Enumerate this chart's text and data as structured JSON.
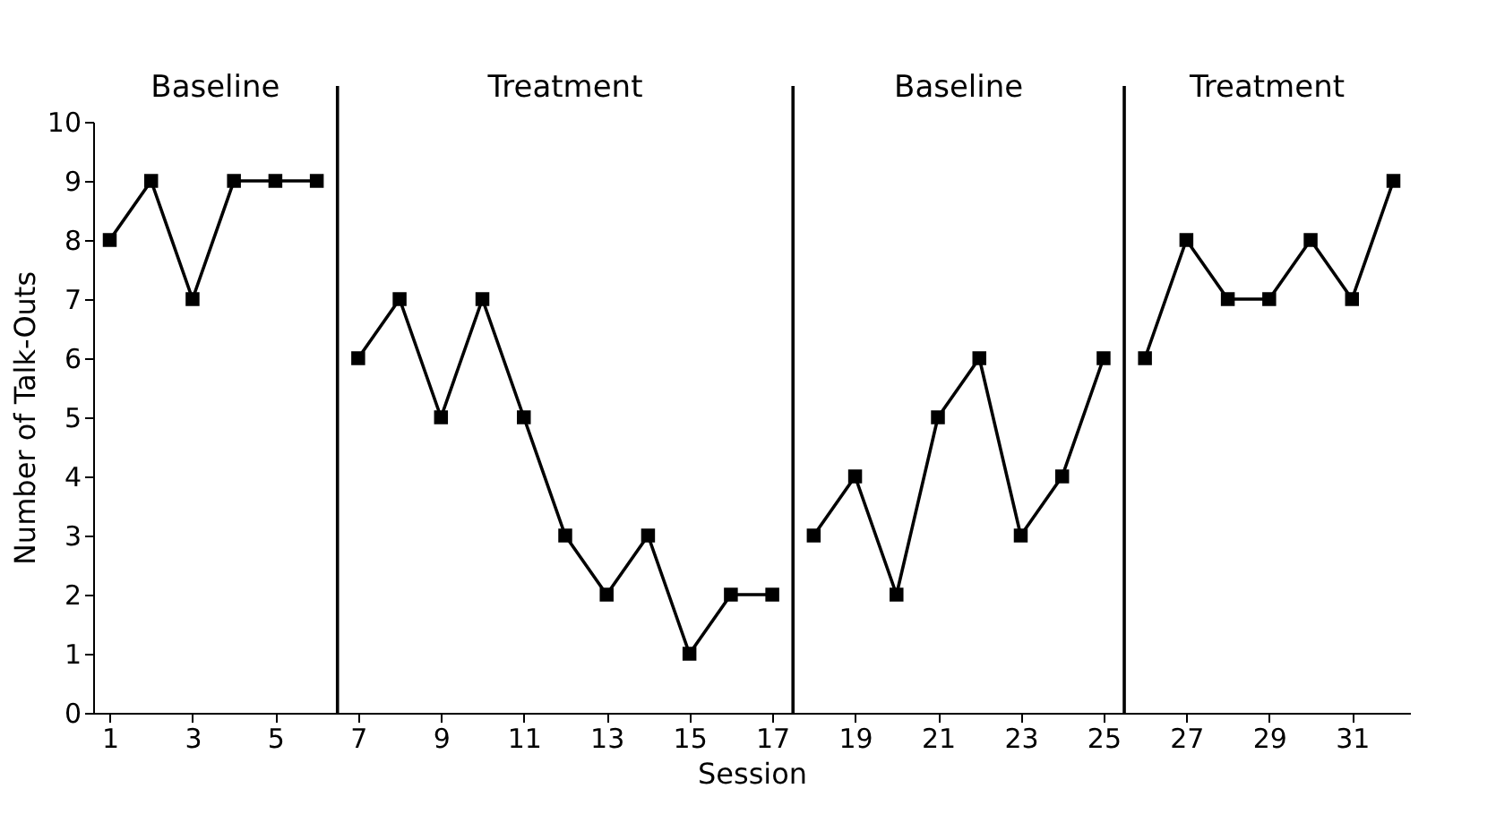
{
  "chart_data": {
    "type": "line",
    "xlabel": "Session",
    "ylabel": "Number of Talk-Outs",
    "series": [
      {
        "color": "#000000",
        "x": [
          1,
          2,
          3,
          4,
          5,
          6
        ],
        "values": [
          8,
          9,
          7,
          9,
          9,
          9
        ]
      },
      {
        "color": "#000000",
        "x": [
          7,
          8,
          9,
          10,
          11,
          12,
          13,
          14,
          15,
          16,
          17
        ],
        "values": [
          6,
          7,
          5,
          7,
          5,
          3,
          2,
          3,
          1,
          2,
          2
        ]
      },
      {
        "color": "#000000",
        "x": [
          18,
          19,
          20,
          21,
          22,
          23,
          24,
          25
        ],
        "values": [
          3,
          4,
          2,
          5,
          6,
          3,
          4,
          6
        ]
      },
      {
        "color": "#000000",
        "x": [
          26,
          27,
          28,
          29,
          30,
          31,
          32
        ],
        "values": [
          6,
          8,
          7,
          7,
          8,
          7,
          9
        ]
      }
    ],
    "xlim": [
      0.6,
      32.4
    ],
    "xticks": [
      1,
      3,
      5,
      7,
      9,
      11,
      13,
      15,
      17,
      19,
      21,
      23,
      25,
      27,
      29,
      31
    ],
    "ylim": [
      0,
      10
    ],
    "yticks": [
      0,
      1,
      2,
      3,
      4,
      5,
      6,
      7,
      8,
      9,
      10
    ],
    "ref_lines": [
      {
        "axis": "x",
        "value": 6.5,
        "color": "#000000"
      },
      {
        "axis": "x",
        "value": 17.5,
        "color": "#000000"
      },
      {
        "axis": "x",
        "value": 25.5,
        "color": "#000000"
      }
    ],
    "annotations": [
      "Baseline",
      "Treatment",
      "Baseline",
      "Treatment"
    ],
    "marker": "square",
    "line_style": "solid",
    "grid": false
  }
}
